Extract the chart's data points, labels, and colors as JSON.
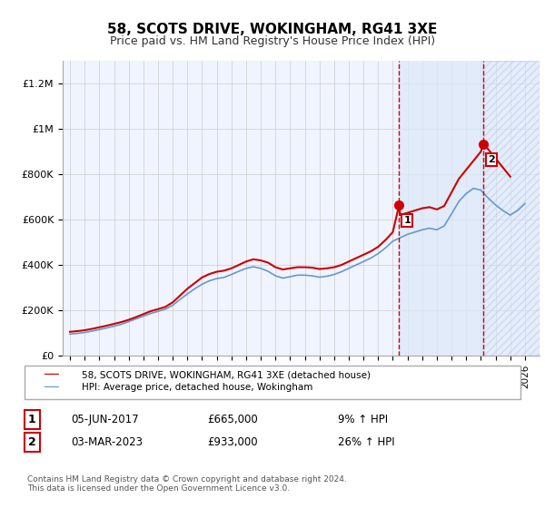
{
  "title": "58, SCOTS DRIVE, WOKINGHAM, RG41 3XE",
  "subtitle": "Price paid vs. HM Land Registry's House Price Index (HPI)",
  "legend_label_red": "58, SCOTS DRIVE, WOKINGHAM, RG41 3XE (detached house)",
  "legend_label_blue": "HPI: Average price, detached house, Wokingham",
  "annotation1": {
    "label": "1",
    "date": "05-JUN-2017",
    "price": "£665,000",
    "change": "9% ↑ HPI"
  },
  "annotation2": {
    "label": "2",
    "date": "03-MAR-2023",
    "price": "£933,000",
    "change": "26% ↑ HPI"
  },
  "footer": "Contains HM Land Registry data © Crown copyright and database right 2024.\nThis data is licensed under the Open Government Licence v3.0.",
  "xlim": [
    1994.5,
    2027
  ],
  "ylim": [
    0,
    1300000
  ],
  "yticks": [
    0,
    200000,
    400000,
    600000,
    800000,
    1000000,
    1200000
  ],
  "ytick_labels": [
    "£0",
    "£200K",
    "£400K",
    "£600K",
    "£800K",
    "£1M",
    "£1.2M"
  ],
  "xticks": [
    1995,
    1996,
    1997,
    1998,
    1999,
    2000,
    2001,
    2002,
    2003,
    2004,
    2005,
    2006,
    2007,
    2008,
    2009,
    2010,
    2011,
    2012,
    2013,
    2014,
    2015,
    2016,
    2017,
    2018,
    2019,
    2020,
    2021,
    2022,
    2023,
    2024,
    2025,
    2026
  ],
  "marker1_x": 2017.43,
  "marker1_y": 665000,
  "marker2_x": 2023.17,
  "marker2_y": 933000,
  "vline1_x": 2017.43,
  "vline2_x": 2023.17,
  "shade1_start": 2017.43,
  "shade1_end": 2023.17,
  "shade2_start": 2023.17,
  "shade2_end": 2027,
  "bg_color": "#f0f4ff",
  "hatch_color": "#c8d8f0",
  "grid_color": "#cccccc",
  "red_color": "#cc0000",
  "blue_color": "#6699cc",
  "red_hpi_data": {
    "x": [
      1995,
      1995.5,
      1996,
      1996.5,
      1997,
      1997.5,
      1998,
      1998.5,
      1999,
      1999.5,
      2000,
      2000.5,
      2001,
      2001.5,
      2002,
      2002.5,
      2003,
      2003.5,
      2004,
      2004.5,
      2005,
      2005.5,
      2006,
      2006.5,
      2007,
      2007.5,
      2008,
      2008.5,
      2009,
      2009.5,
      2010,
      2010.5,
      2011,
      2011.5,
      2012,
      2012.5,
      2013,
      2013.5,
      2014,
      2014.5,
      2015,
      2015.5,
      2016,
      2016.5,
      2017,
      2017.43,
      2017.5,
      2018,
      2018.5,
      2019,
      2019.5,
      2020,
      2020.5,
      2021,
      2021.5,
      2022,
      2022.5,
      2023,
      2023.17,
      2023.5,
      2024,
      2024.5,
      2025
    ],
    "y": [
      105000,
      108000,
      112000,
      118000,
      125000,
      132000,
      140000,
      148000,
      158000,
      170000,
      183000,
      196000,
      205000,
      215000,
      235000,
      265000,
      295000,
      320000,
      345000,
      360000,
      370000,
      375000,
      385000,
      400000,
      415000,
      425000,
      420000,
      410000,
      390000,
      380000,
      385000,
      390000,
      390000,
      388000,
      382000,
      385000,
      390000,
      400000,
      415000,
      430000,
      445000,
      460000,
      480000,
      510000,
      545000,
      665000,
      620000,
      630000,
      640000,
      650000,
      655000,
      645000,
      660000,
      720000,
      780000,
      820000,
      860000,
      900000,
      933000,
      910000,
      870000,
      830000,
      790000
    ]
  },
  "blue_hpi_data": {
    "x": [
      1995,
      1995.5,
      1996,
      1996.5,
      1997,
      1997.5,
      1998,
      1998.5,
      1999,
      1999.5,
      2000,
      2000.5,
      2001,
      2001.5,
      2002,
      2002.5,
      2003,
      2003.5,
      2004,
      2004.5,
      2005,
      2005.5,
      2006,
      2006.5,
      2007,
      2007.5,
      2008,
      2008.5,
      2009,
      2009.5,
      2010,
      2010.5,
      2011,
      2011.5,
      2012,
      2012.5,
      2013,
      2013.5,
      2014,
      2014.5,
      2015,
      2015.5,
      2016,
      2016.5,
      2017,
      2017.5,
      2018,
      2018.5,
      2019,
      2019.5,
      2020,
      2020.5,
      2021,
      2021.5,
      2022,
      2022.5,
      2023,
      2023.5,
      2024,
      2024.5,
      2025,
      2025.5,
      2026
    ],
    "y": [
      95000,
      98000,
      102000,
      108000,
      115000,
      122000,
      130000,
      138000,
      150000,
      162000,
      174000,
      186000,
      195000,
      205000,
      222000,
      248000,
      272000,
      295000,
      315000,
      330000,
      340000,
      345000,
      358000,
      372000,
      385000,
      392000,
      385000,
      372000,
      352000,
      342000,
      348000,
      355000,
      355000,
      352000,
      346000,
      350000,
      358000,
      370000,
      385000,
      400000,
      415000,
      430000,
      450000,
      475000,
      505000,
      520000,
      535000,
      545000,
      555000,
      562000,
      555000,
      572000,
      625000,
      680000,
      715000,
      738000,
      730000,
      695000,
      665000,
      640000,
      620000,
      640000,
      670000
    ]
  }
}
